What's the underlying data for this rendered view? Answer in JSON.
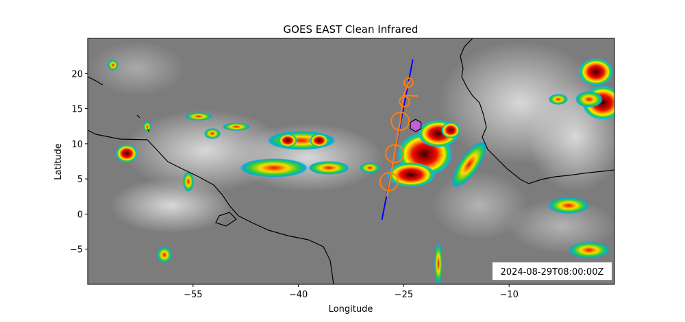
{
  "chart_data": {
    "type": "map",
    "title": "GOES EAST Clean Infrared",
    "xlabel": "Longitude",
    "ylabel": "Latitude",
    "xlim": [
      -70,
      5
    ],
    "ylim": [
      -10,
      25
    ],
    "xticks": [
      -55,
      -40,
      -25,
      -10
    ],
    "xtick_labels": [
      "−55",
      "−40",
      "−25",
      "−10"
    ],
    "yticks": [
      -5,
      0,
      5,
      10,
      15,
      20
    ],
    "ytick_labels": [
      "−5",
      "0",
      "5",
      "10",
      "15",
      "20"
    ],
    "timestamp": "2024-08-29T08:00:00Z",
    "blue_track": {
      "color": "#0000ff",
      "lon": [
        -28.1,
        -23.7
      ],
      "lat": [
        -0.8,
        22.0
      ]
    },
    "orange_track": {
      "color": "#ff7f0e",
      "lon": [
        -27.4,
        -26.3,
        -25.5,
        -25.0,
        -24.3,
        -24.1
      ],
      "lat": [
        2.5,
        8.6,
        13.2,
        16.9,
        18.7,
        19.0
      ]
    },
    "orange_flag": {
      "lon": [
        -25.0,
        -23.0
      ],
      "lat": [
        16.9,
        16.8
      ]
    },
    "orange_circles": [
      {
        "lon": -27.1,
        "lat": 4.6,
        "radius_deg": 1.27
      },
      {
        "lon": -26.3,
        "lat": 8.6,
        "radius_deg": 1.27
      },
      {
        "lon": -25.5,
        "lat": 13.2,
        "radius_deg": 1.27
      },
      {
        "lon": -24.9,
        "lat": 16.0,
        "radius_deg": 0.7
      },
      {
        "lon": -24.3,
        "lat": 18.7,
        "radius_deg": 0.63
      }
    ],
    "hexagon_marker": {
      "lon": -23.3,
      "lat": 12.6,
      "color": "#c061d8"
    }
  }
}
